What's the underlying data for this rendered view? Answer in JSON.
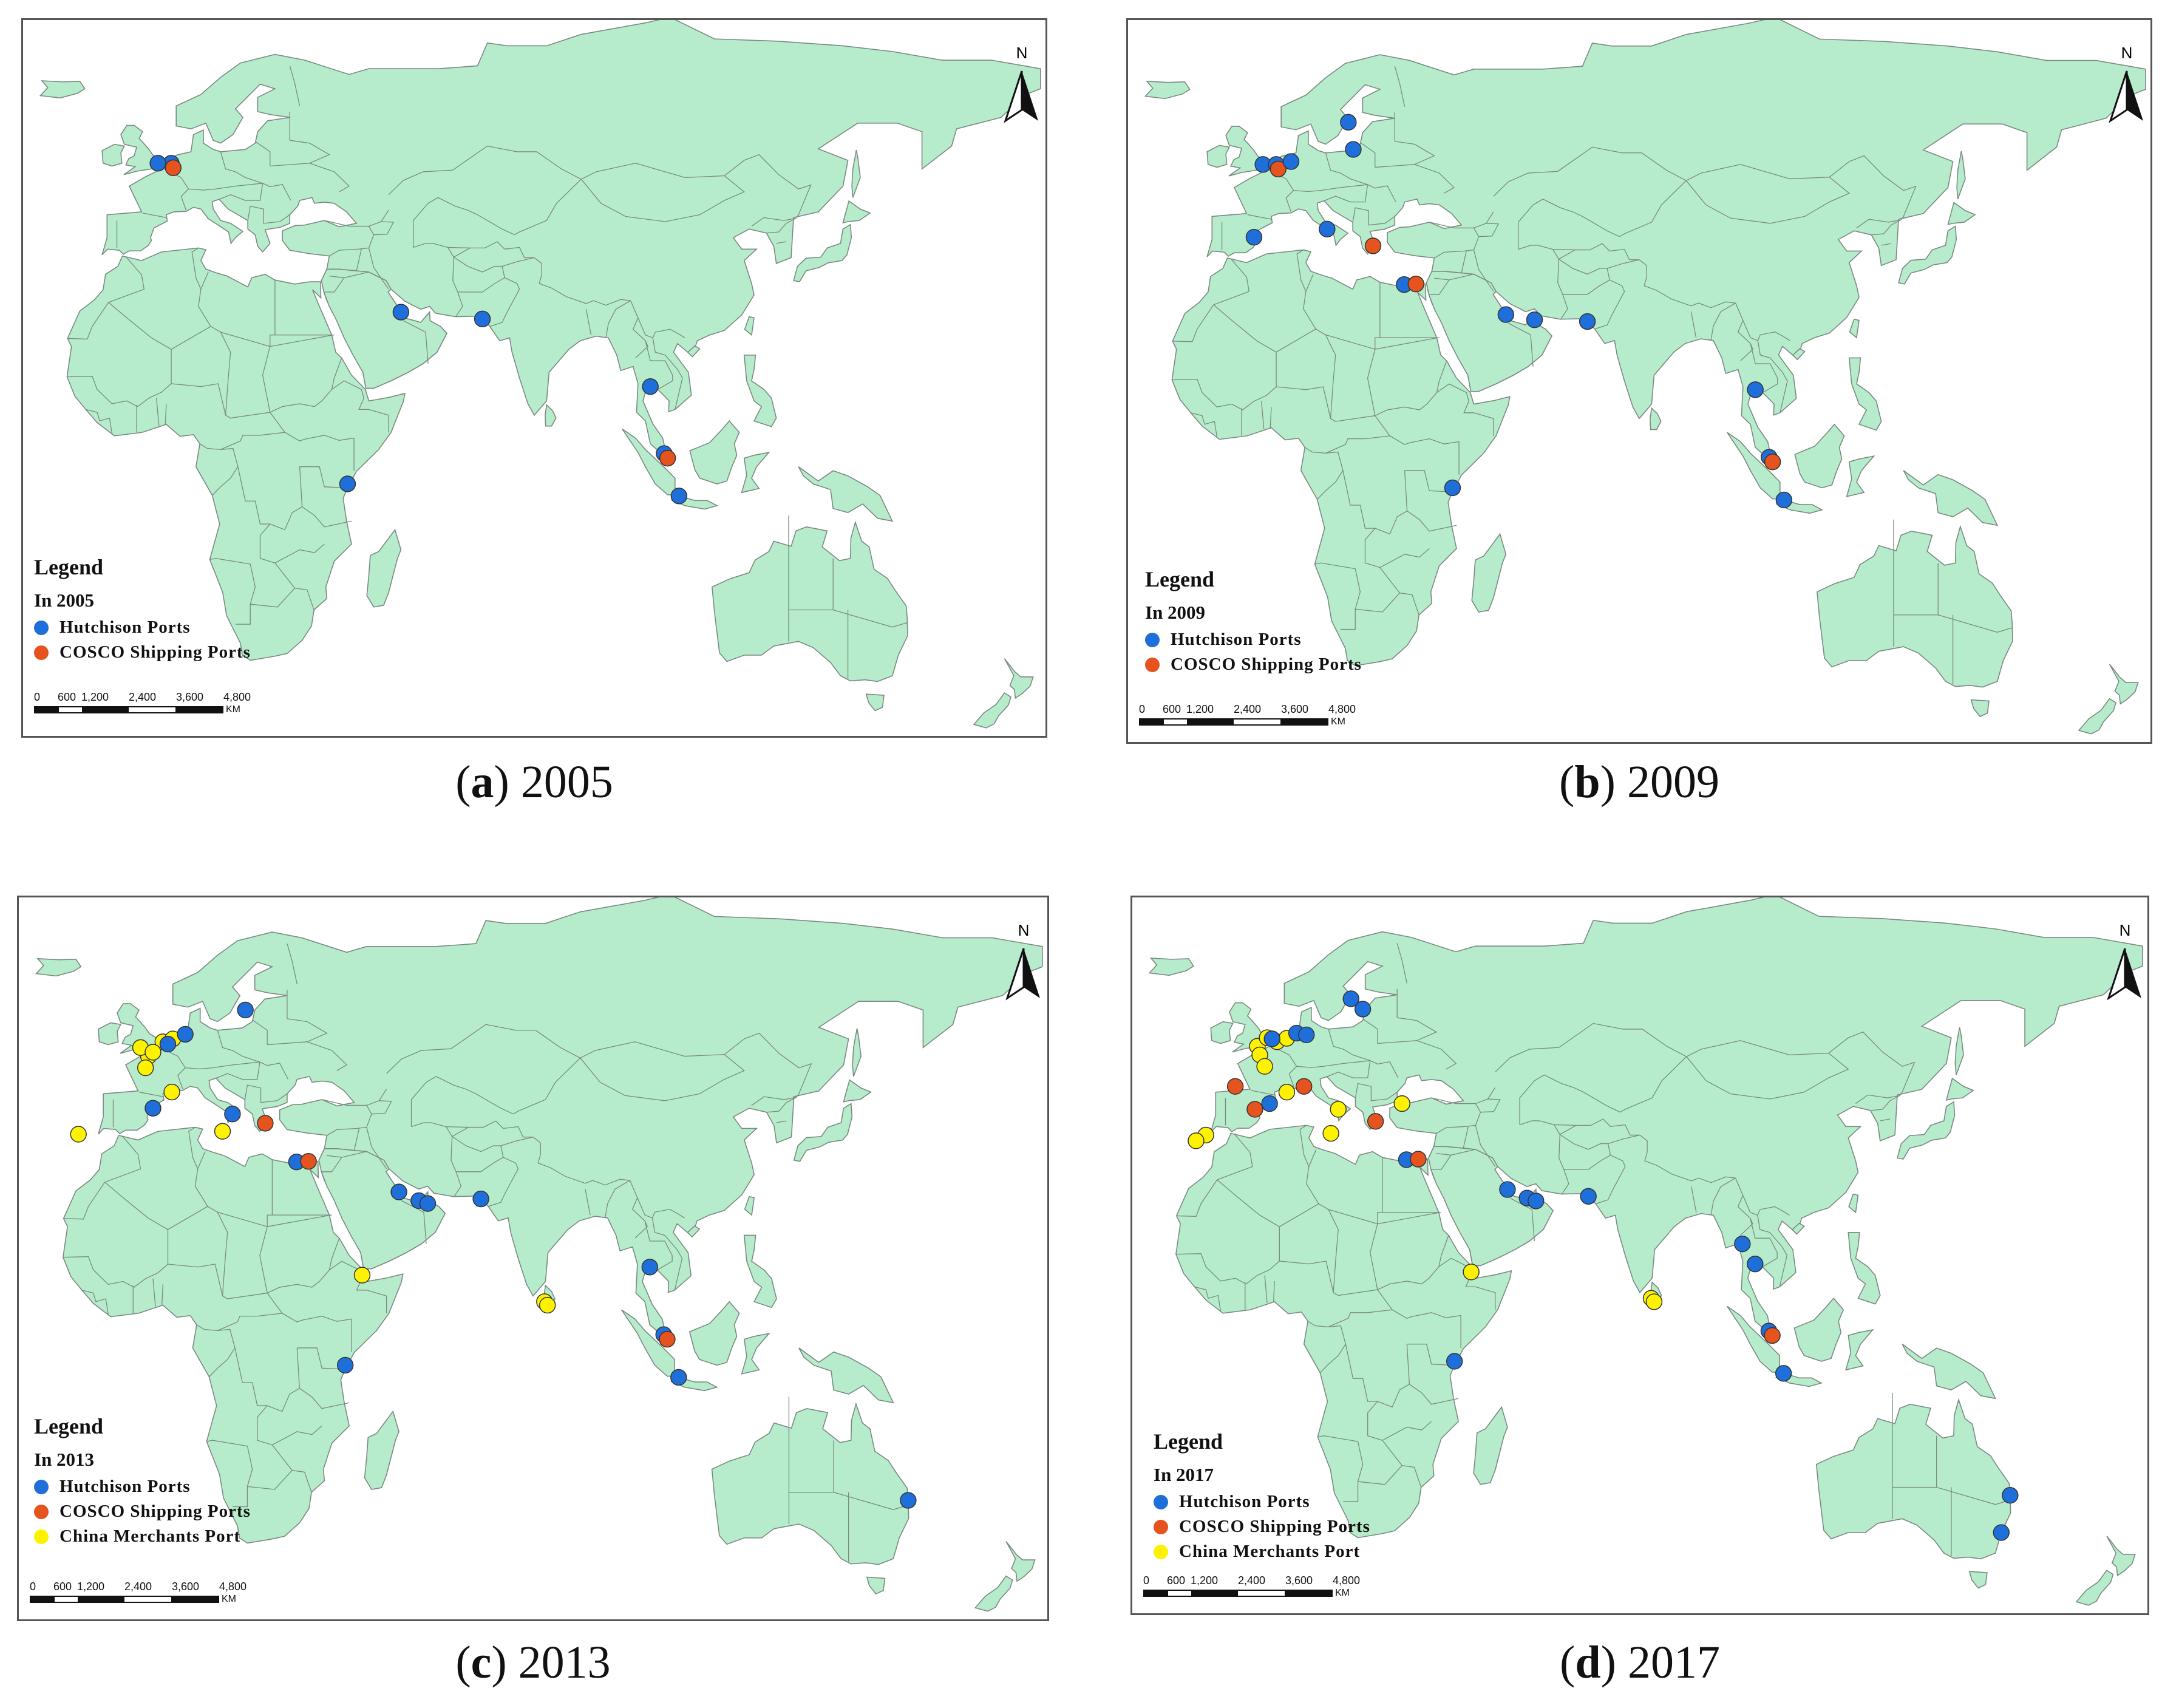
{
  "colors": {
    "land": "#b6eccb",
    "border": "#7a8a80",
    "hutchison": "#1f6fdb",
    "cosco": "#e5531f",
    "china_merchants": "#fff200"
  },
  "north_label": "N",
  "scale_bar": {
    "ticks": [
      "0",
      "600",
      "1,200",
      "2,400",
      "3,600",
      "4,800"
    ],
    "unit": "KM"
  },
  "legend_title": "Legend",
  "legend_items": {
    "hutchison": "Hutchison Ports",
    "cosco": "COSCO Shipping Ports",
    "china_merchants": "China Merchants Port"
  },
  "panels": [
    {
      "letter": "a",
      "year": "2005",
      "legend_year": "In 2005",
      "ports": [
        {
          "op": "hutchison",
          "lon": 4,
          "lat": 52
        },
        {
          "op": "hutchison",
          "lon": 1.3,
          "lat": 52
        },
        {
          "op": "cosco",
          "lon": 4.4,
          "lat": 51.2
        },
        {
          "op": "hutchison",
          "lon": 50.5,
          "lat": 26
        },
        {
          "op": "hutchison",
          "lon": 67,
          "lat": 24.8
        },
        {
          "op": "hutchison",
          "lon": 101,
          "lat": 13
        },
        {
          "op": "hutchison",
          "lon": 103.8,
          "lat": 1.3
        },
        {
          "op": "cosco",
          "lon": 104.5,
          "lat": 0.5
        },
        {
          "op": "hutchison",
          "lon": 106.8,
          "lat": -6.1
        },
        {
          "op": "hutchison",
          "lon": 39.7,
          "lat": -4
        }
      ]
    },
    {
      "letter": "b",
      "year": "2009",
      "legend_year": "In 2009",
      "ports": [
        {
          "op": "hutchison",
          "lon": 1.3,
          "lat": 52
        },
        {
          "op": "hutchison",
          "lon": 4,
          "lat": 52
        },
        {
          "op": "cosco",
          "lon": 4.4,
          "lat": 51.2
        },
        {
          "op": "hutchison",
          "lon": 7,
          "lat": 52.5
        },
        {
          "op": "hutchison",
          "lon": 18.6,
          "lat": 59.3
        },
        {
          "op": "hutchison",
          "lon": 19.6,
          "lat": 54.6
        },
        {
          "op": "hutchison",
          "lon": -0.5,
          "lat": 39.4
        },
        {
          "op": "hutchison",
          "lon": 14.3,
          "lat": 40.8
        },
        {
          "op": "cosco",
          "lon": 23.6,
          "lat": 37.9
        },
        {
          "op": "hutchison",
          "lon": 29.9,
          "lat": 31.2
        },
        {
          "op": "cosco",
          "lon": 32.3,
          "lat": 31.3
        },
        {
          "op": "hutchison",
          "lon": 50.5,
          "lat": 26
        },
        {
          "op": "hutchison",
          "lon": 56.3,
          "lat": 25.1
        },
        {
          "op": "hutchison",
          "lon": 67,
          "lat": 24.8
        },
        {
          "op": "hutchison",
          "lon": 101,
          "lat": 13
        },
        {
          "op": "hutchison",
          "lon": 103.8,
          "lat": 1.3
        },
        {
          "op": "cosco",
          "lon": 104.5,
          "lat": 0.5
        },
        {
          "op": "hutchison",
          "lon": 106.8,
          "lat": -6.1
        },
        {
          "op": "hutchison",
          "lon": 39.7,
          "lat": -4
        }
      ]
    },
    {
      "letter": "c",
      "year": "2013",
      "legend_year": "In 2013",
      "ports": [
        {
          "op": "china_merchants",
          "lon": 0.1,
          "lat": 49.5
        },
        {
          "op": "china_merchants",
          "lon": -1.5,
          "lat": 51
        },
        {
          "op": "china_merchants",
          "lon": 3,
          "lat": 52
        },
        {
          "op": "china_merchants",
          "lon": 5,
          "lat": 52.5
        },
        {
          "op": "china_merchants",
          "lon": 1,
          "lat": 50.2
        },
        {
          "op": "china_merchants",
          "lon": -0.5,
          "lat": 47.5
        },
        {
          "op": "hutchison",
          "lon": 4,
          "lat": 51.6
        },
        {
          "op": "hutchison",
          "lon": 7.5,
          "lat": 53.3
        },
        {
          "op": "hutchison",
          "lon": 19.6,
          "lat": 57.5
        },
        {
          "op": "hutchison",
          "lon": 1,
          "lat": 40.5
        },
        {
          "op": "china_merchants",
          "lon": 4.8,
          "lat": 43.3
        },
        {
          "op": "china_merchants",
          "lon": -14,
          "lat": 36
        },
        {
          "op": "china_merchants",
          "lon": 15,
          "lat": 36.5
        },
        {
          "op": "hutchison",
          "lon": 17,
          "lat": 39.5
        },
        {
          "op": "cosco",
          "lon": 23.6,
          "lat": 37.9
        },
        {
          "op": "hutchison",
          "lon": 29.9,
          "lat": 31.2
        },
        {
          "op": "cosco",
          "lon": 32.3,
          "lat": 31.3
        },
        {
          "op": "hutchison",
          "lon": 50.5,
          "lat": 26
        },
        {
          "op": "hutchison",
          "lon": 54.5,
          "lat": 24.5
        },
        {
          "op": "hutchison",
          "lon": 56.3,
          "lat": 24
        },
        {
          "op": "hutchison",
          "lon": 67,
          "lat": 24.8
        },
        {
          "op": "china_merchants",
          "lon": 43.1,
          "lat": 11.6
        },
        {
          "op": "china_merchants",
          "lon": 79.8,
          "lat": 7
        },
        {
          "op": "china_merchants",
          "lon": 80.4,
          "lat": 6.4
        },
        {
          "op": "hutchison",
          "lon": 101,
          "lat": 13
        },
        {
          "op": "hutchison",
          "lon": 103.8,
          "lat": 1.3
        },
        {
          "op": "cosco",
          "lon": 104.5,
          "lat": 0.5
        },
        {
          "op": "hutchison",
          "lon": 106.8,
          "lat": -6.1
        },
        {
          "op": "hutchison",
          "lon": 39.7,
          "lat": -4
        },
        {
          "op": "hutchison",
          "lon": 153,
          "lat": -27.4
        }
      ]
    },
    {
      "letter": "d",
      "year": "2017",
      "legend_year": "In 2017",
      "ports": [
        {
          "op": "china_merchants",
          "lon": -0.5,
          "lat": 51
        },
        {
          "op": "china_merchants",
          "lon": 1.5,
          "lat": 52.5
        },
        {
          "op": "china_merchants",
          "lon": 3.5,
          "lat": 51.8
        },
        {
          "op": "china_merchants",
          "lon": 5.5,
          "lat": 52.4
        },
        {
          "op": "china_merchants",
          "lon": 0,
          "lat": 49.5
        },
        {
          "op": "china_merchants",
          "lon": 1,
          "lat": 47.5
        },
        {
          "op": "hutchison",
          "lon": 2.5,
          "lat": 52.3
        },
        {
          "op": "hutchison",
          "lon": 7.5,
          "lat": 53.3
        },
        {
          "op": "hutchison",
          "lon": 9.5,
          "lat": 53
        },
        {
          "op": "hutchison",
          "lon": 18.6,
          "lat": 59.3
        },
        {
          "op": "hutchison",
          "lon": 21,
          "lat": 57.5
        },
        {
          "op": "cosco",
          "lon": -5,
          "lat": 44
        },
        {
          "op": "cosco",
          "lon": -1,
          "lat": 40
        },
        {
          "op": "hutchison",
          "lon": 2,
          "lat": 41
        },
        {
          "op": "china_merchants",
          "lon": 5.5,
          "lat": 43
        },
        {
          "op": "cosco",
          "lon": 9,
          "lat": 44
        },
        {
          "op": "china_merchants",
          "lon": 16,
          "lat": 40
        },
        {
          "op": "china_merchants",
          "lon": -11,
          "lat": 35.5
        },
        {
          "op": "china_merchants",
          "lon": -13,
          "lat": 34.5
        },
        {
          "op": "china_merchants",
          "lon": 14.5,
          "lat": 35.8
        },
        {
          "op": "cosco",
          "lon": 23.6,
          "lat": 37.9
        },
        {
          "op": "china_merchants",
          "lon": 29,
          "lat": 41
        },
        {
          "op": "hutchison",
          "lon": 29.9,
          "lat": 31.2
        },
        {
          "op": "cosco",
          "lon": 32.3,
          "lat": 31.3
        },
        {
          "op": "hutchison",
          "lon": 50.5,
          "lat": 26
        },
        {
          "op": "hutchison",
          "lon": 54.5,
          "lat": 24.5
        },
        {
          "op": "hutchison",
          "lon": 56.3,
          "lat": 24
        },
        {
          "op": "hutchison",
          "lon": 67,
          "lat": 24.8
        },
        {
          "op": "china_merchants",
          "lon": 43.1,
          "lat": 11.6
        },
        {
          "op": "china_merchants",
          "lon": 79.8,
          "lat": 7
        },
        {
          "op": "china_merchants",
          "lon": 80.4,
          "lat": 6.4
        },
        {
          "op": "hutchison",
          "lon": 98.4,
          "lat": 16.5
        },
        {
          "op": "hutchison",
          "lon": 101,
          "lat": 13
        },
        {
          "op": "hutchison",
          "lon": 103.8,
          "lat": 1.3
        },
        {
          "op": "cosco",
          "lon": 104.5,
          "lat": 0.5
        },
        {
          "op": "hutchison",
          "lon": 106.8,
          "lat": -6.1
        },
        {
          "op": "hutchison",
          "lon": 39.7,
          "lat": -4
        },
        {
          "op": "hutchison",
          "lon": 153,
          "lat": -27.4
        },
        {
          "op": "hutchison",
          "lon": 151.2,
          "lat": -33.9
        }
      ]
    }
  ]
}
